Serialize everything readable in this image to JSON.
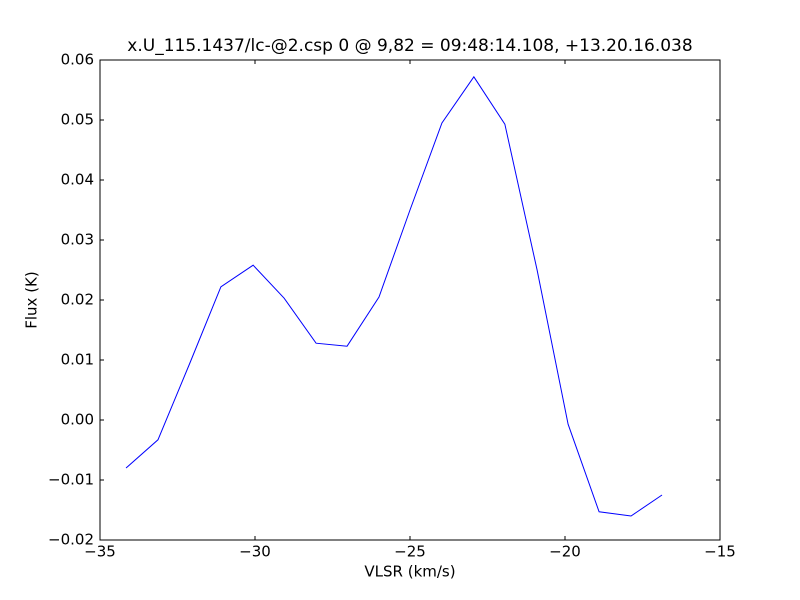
{
  "chart_data": {
    "type": "line",
    "title": "x.U_115.1437/lc-@2.csp 0 @ 9,82 = 09:48:14.108, +13.20.16.038",
    "xlabel": "VLSR (km/s)",
    "ylabel": "Flux (K)",
    "x": [
      -34.16,
      -33.13,
      -32.1,
      -31.1,
      -30.06,
      -29.06,
      -28.03,
      -27.03,
      -26.0,
      -25.0,
      -23.97,
      -22.94,
      -21.94,
      -20.9,
      -19.9,
      -18.9,
      -17.87,
      -16.87
    ],
    "series": [
      {
        "name": "Flux",
        "color": "#0000ff",
        "values": [
          -0.008,
          -0.0033,
          0.0095,
          0.0222,
          0.0258,
          0.0203,
          0.0128,
          0.0123,
          0.0205,
          0.035,
          0.0495,
          0.0572,
          0.0493,
          0.025,
          -0.0007,
          -0.0153,
          -0.016,
          -0.0125
        ]
      }
    ],
    "xlim": [
      -35,
      -15
    ],
    "xticks": [
      {
        "value": -35,
        "label": "−35"
      },
      {
        "value": -30,
        "label": "−30"
      },
      {
        "value": -25,
        "label": "−25"
      },
      {
        "value": -20,
        "label": "−20"
      },
      {
        "value": -15,
        "label": "−15"
      }
    ],
    "ylim": [
      -0.02,
      0.06
    ],
    "yticks": [
      {
        "value": -0.02,
        "label": "−0.02"
      },
      {
        "value": -0.01,
        "label": "−0.01"
      },
      {
        "value": 0,
        "label": "0.00"
      },
      0.01,
      0.02,
      0.03,
      0.04,
      0.05,
      0.06
    ]
  }
}
